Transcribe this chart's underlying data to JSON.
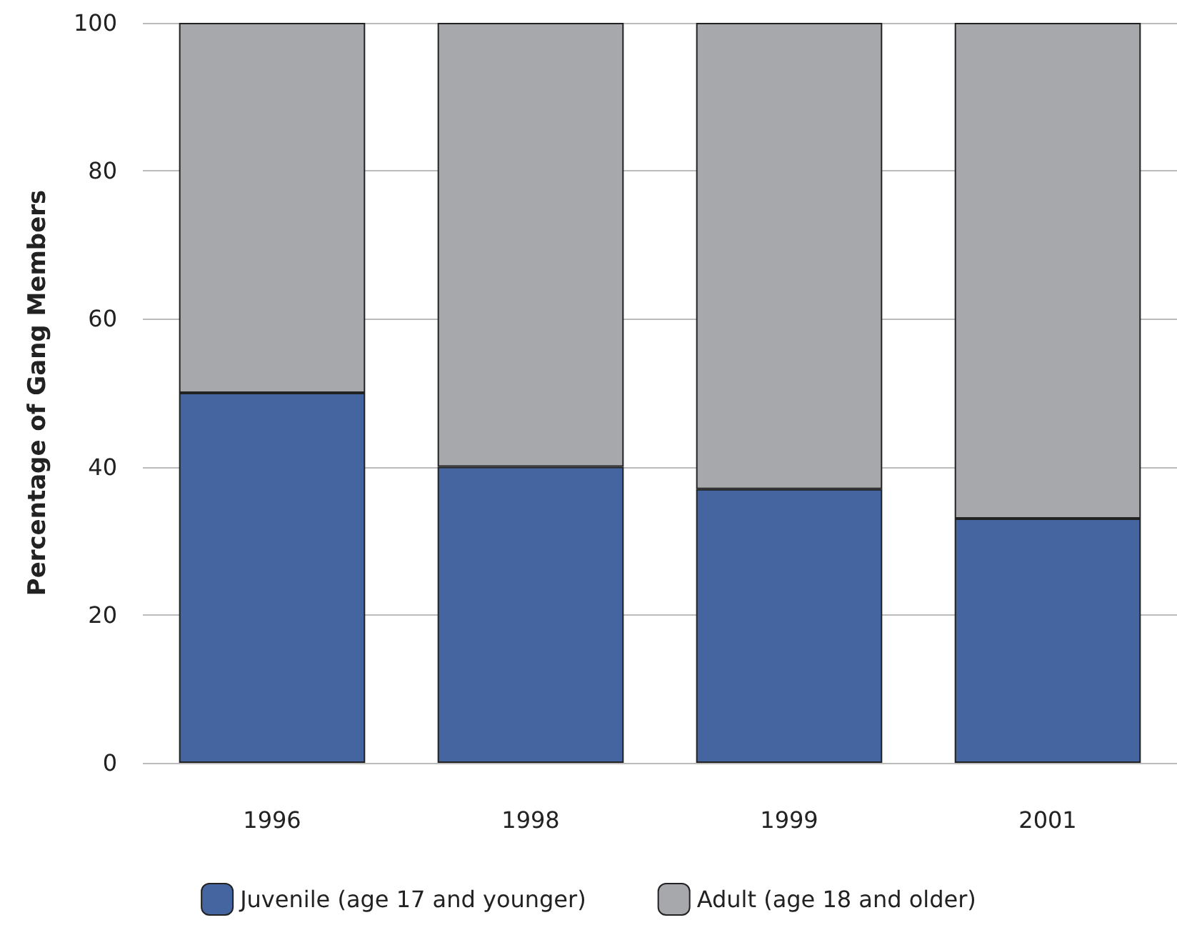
{
  "chart_data": {
    "type": "bar",
    "stacked": true,
    "ylabel": "Percentage of Gang Members",
    "categories": [
      "1996",
      "1998",
      "1999",
      "2001"
    ],
    "series": [
      {
        "name": "Juvenile (age 17 and younger)",
        "color": "#4565a0",
        "values": [
          50,
          40,
          37,
          33
        ]
      },
      {
        "name": "Adult (age 18 and older)",
        "color": "#a7a8ab",
        "values": [
          50,
          60,
          63,
          67
        ]
      }
    ],
    "ylim": [
      0,
      100
    ],
    "yticks": [
      0,
      20,
      40,
      60,
      80,
      100
    ],
    "grid": "y",
    "legend": "bottom"
  }
}
